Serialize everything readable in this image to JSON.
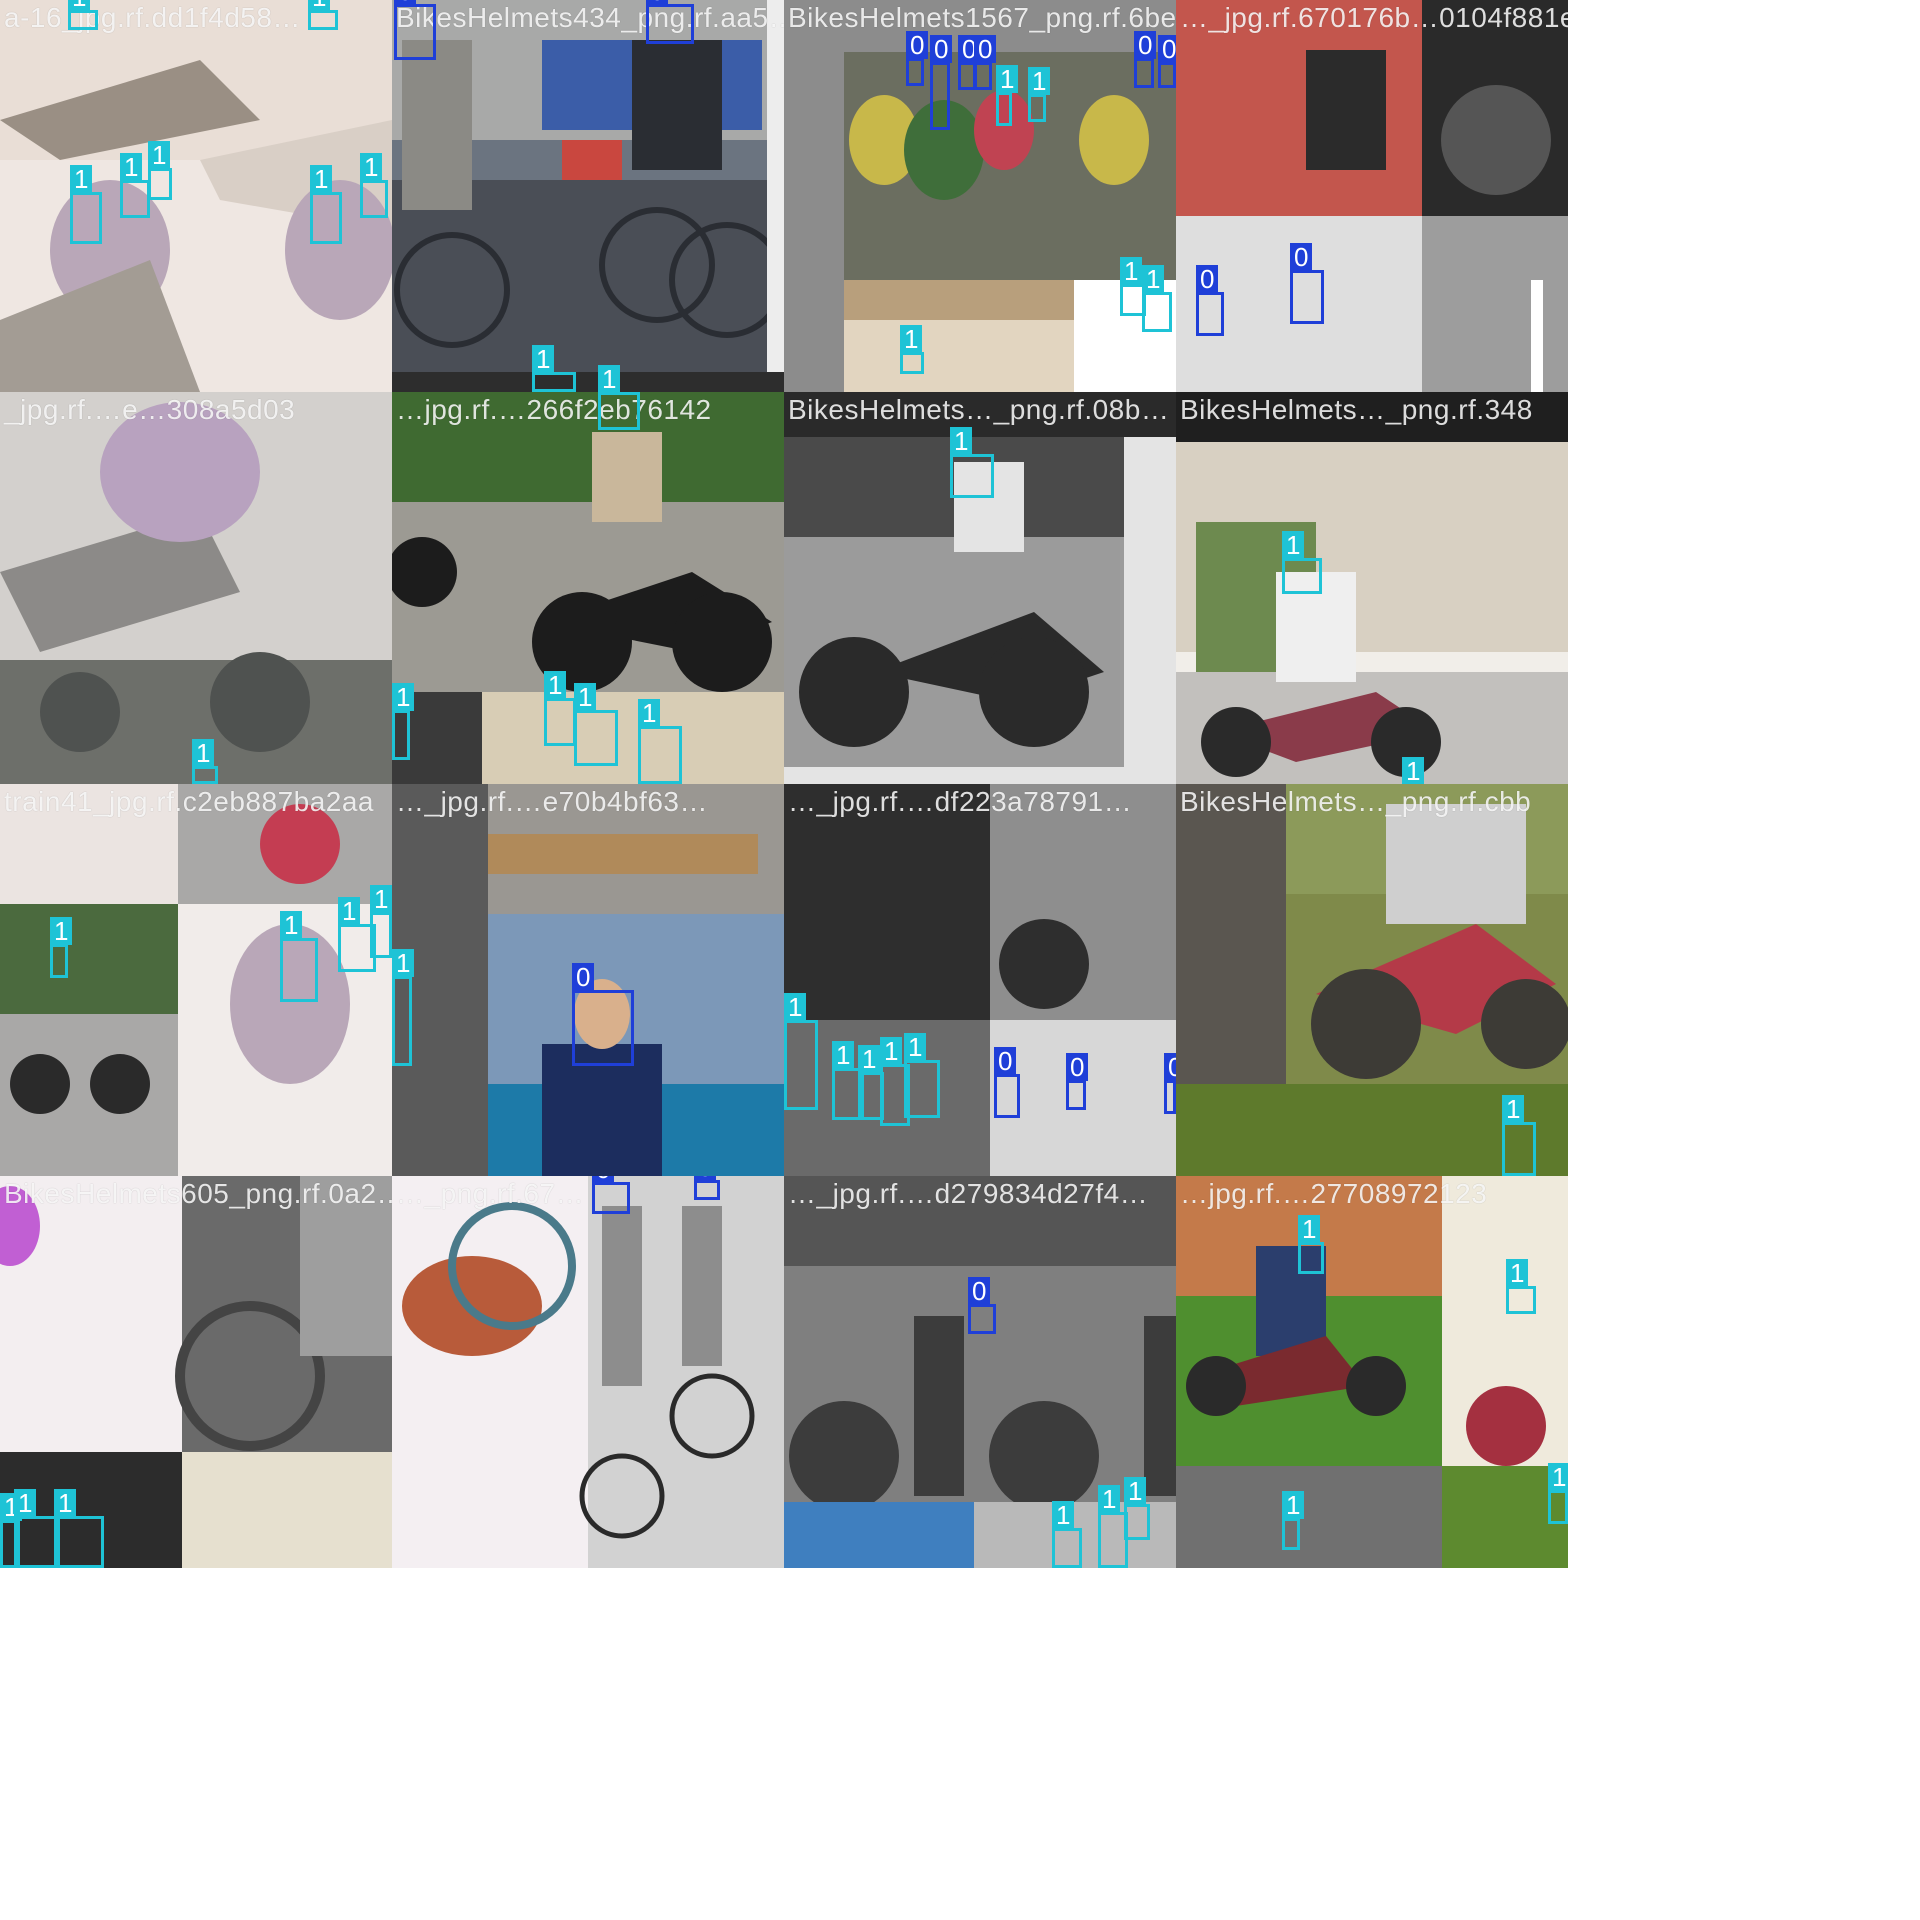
{
  "tiles": [
    {
      "caption": "a-16_jpg.rf.dd1f4d58…",
      "palette": [
        "#efe7e2",
        "#b9a7b8",
        "#9a8f84",
        "#d9cfc6"
      ],
      "boxes": []
    },
    {
      "caption": "BikesHelmets434_png.rf.aa5…",
      "palette": [
        "#6b7480",
        "#3c4047",
        "#a8a9a8",
        "#2a2d33"
      ],
      "boxes": []
    },
    {
      "caption": "BikesHelmets1567_png.rf.6be…",
      "palette": [
        "#8c8c8c",
        "#3f6e3a",
        "#c8b84a",
        "#5c7fb2"
      ],
      "boxes": []
    },
    {
      "caption": "…_jpg.rf.670176b…0104f881e",
      "palette": [
        "#c3564d",
        "#2b2b2b",
        "#dedede",
        "#777777"
      ],
      "boxes": []
    },
    {
      "caption": "_jpg.rf.…e…308a5d03",
      "palette": [
        "#d3d0cd",
        "#8c8a88",
        "#b8a2bf",
        "#6d6f6a"
      ],
      "boxes": []
    },
    {
      "caption": "…jpg.rf.…266f2eb76142",
      "palette": [
        "#3f6a31",
        "#b6b3aa",
        "#1c1c1c",
        "#c9b79b"
      ],
      "boxes": []
    },
    {
      "caption": "BikesHelmets…_png.rf.08b…",
      "palette": [
        "#9b9b9b",
        "#4a4a4a",
        "#e4e4e4",
        "#2a2a2a"
      ],
      "boxes": []
    },
    {
      "caption": "BikesHelmets…_png.rf.348",
      "palette": [
        "#d8d0c2",
        "#6d8a4f",
        "#f1eee9",
        "#8a3b4a"
      ],
      "boxes": []
    },
    {
      "caption": "train41_jpg.rf.c2eb887ba2aa",
      "palette": [
        "#f1ecea",
        "#4b6a3e",
        "#a9a8a7",
        "#c43d52"
      ],
      "boxes": []
    },
    {
      "caption": "…_jpg.rf.…e70b4bf63…",
      "palette": [
        "#7c98b8",
        "#1c2d5e",
        "#b08a5a",
        "#1d7aa8"
      ],
      "boxes": []
    },
    {
      "caption": "…_jpg.rf.…df223a78791…",
      "palette": [
        "#5a5a5a",
        "#2e2e2e",
        "#9a9a9a",
        "#d7d7d7"
      ],
      "boxes": []
    },
    {
      "caption": "BikesHelmets…_png.rf.cbb",
      "palette": [
        "#7f8a4a",
        "#b43a48",
        "#cfcfcf",
        "#3d3b36"
      ],
      "boxes": []
    },
    {
      "caption": "BikesHelmets605_png.rf.0a2…",
      "palette": [
        "#f3eef0",
        "#444444",
        "#9e9e9e",
        "#c15fd3"
      ],
      "boxes": []
    },
    {
      "caption": "…_png.rf.67…",
      "palette": [
        "#f4eff2",
        "#b85b3a",
        "#8d8d8d",
        "#d2d2d2"
      ],
      "boxes": []
    },
    {
      "caption": "…_jpg.rf.…d279834d27f4…",
      "palette": [
        "#555555",
        "#7f7f7f",
        "#3c3c3c",
        "#b9b9b9"
      ],
      "boxes": []
    },
    {
      "caption": "…jpg.rf.…27708972123",
      "palette": [
        "#4f8f2f",
        "#c47a4a",
        "#f0e5d0",
        "#2b3e6d"
      ],
      "boxes": []
    }
  ],
  "class_labels": {
    "zero": "0",
    "one": "1"
  },
  "colors": {
    "class_0": "#1f3fd8",
    "class_1": "#1ec3d6"
  }
}
